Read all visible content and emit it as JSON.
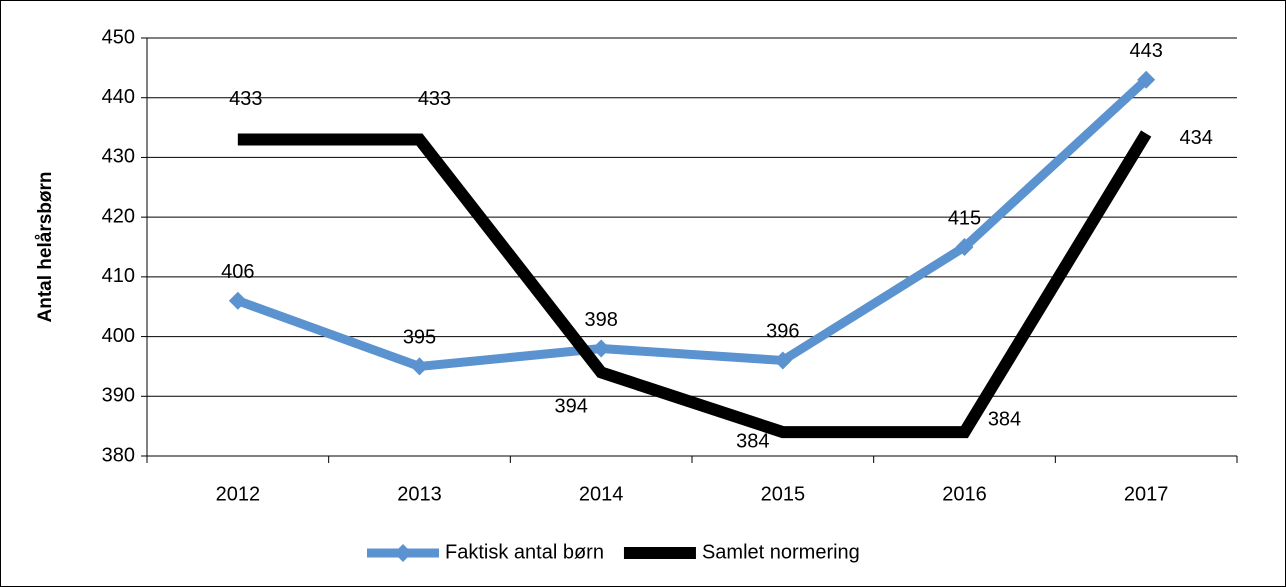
{
  "chart_data": {
    "type": "line",
    "y_label": "Antal helårsbørn",
    "categories": [
      "2012",
      "2013",
      "2014",
      "2015",
      "2016",
      "2017"
    ],
    "series": [
      {
        "name": "Faktisk antal børn",
        "color": "#5a93cf",
        "values": [
          406,
          395,
          398,
          396,
          415,
          443
        ]
      },
      {
        "name": "Samlet normering",
        "color": "#000000",
        "values": [
          433,
          433,
          394,
          384,
          384,
          434
        ]
      }
    ],
    "ylim": [
      380,
      450
    ],
    "yticks": [
      380,
      390,
      400,
      410,
      420,
      430,
      440,
      450
    ],
    "grid": true,
    "legend": "bottom"
  }
}
